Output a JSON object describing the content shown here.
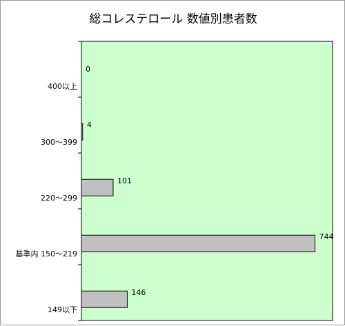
{
  "chart_data": {
    "type": "bar",
    "orientation": "horizontal",
    "title": "総コレステロール 数値別患者数",
    "categories": [
      "400以上",
      "300～399",
      "220～299",
      "基準内 150～219",
      "149以下"
    ],
    "values": [
      0,
      4,
      101,
      744,
      146
    ],
    "xlim": [
      0,
      800
    ],
    "grid": false,
    "legend": "none",
    "colors": {
      "plot_background": "#ccffcc",
      "bar_fill": "#c0c0c0",
      "bar_stroke": "#000000"
    }
  }
}
